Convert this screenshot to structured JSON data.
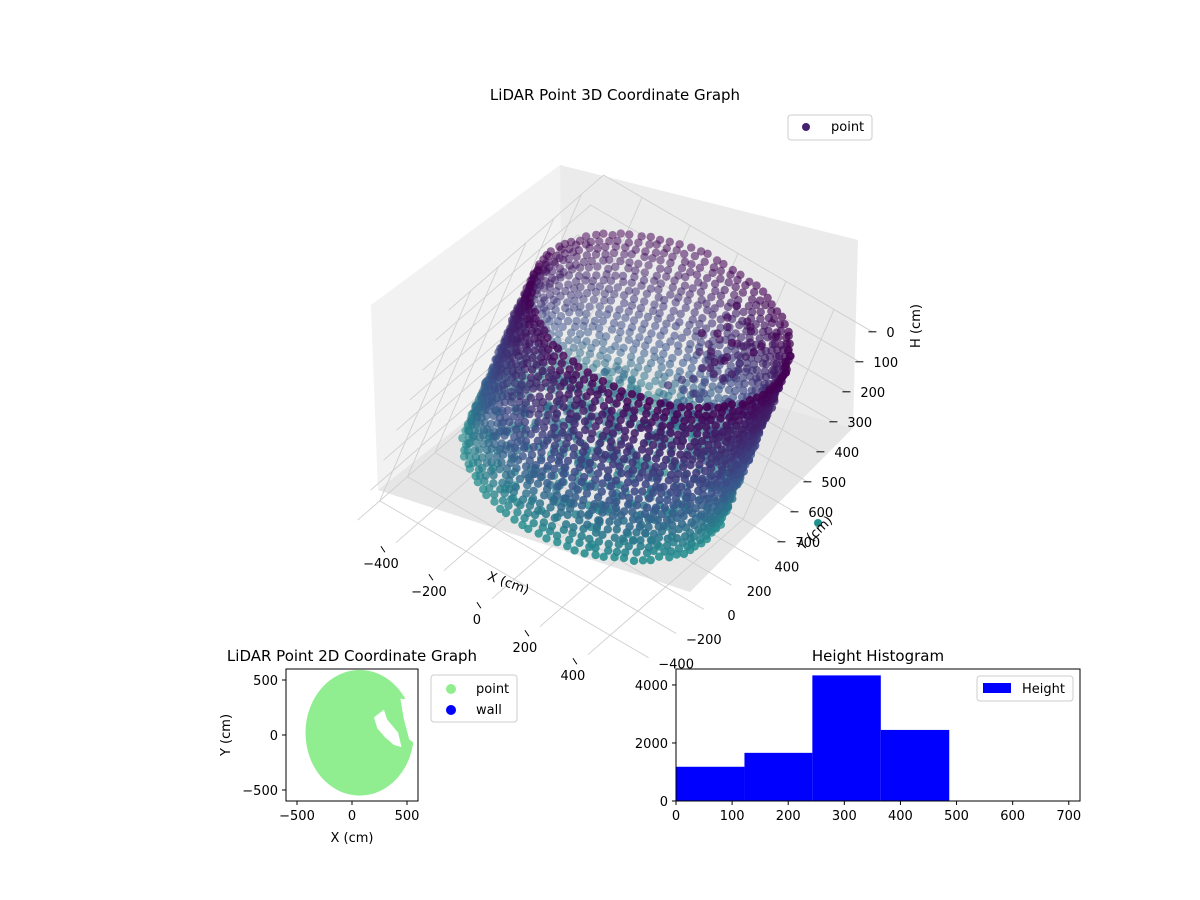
{
  "colors": {
    "point_3d_legend": "#46226e",
    "viridis_dark": "#440154",
    "viridis_mid": "#3b528b",
    "viridis_teal": "#21908d",
    "point_2d": "#90ee90",
    "wall_2d": "#0000ff",
    "hist_bar": "#0000ff",
    "pane_light": "#f2f2f2",
    "pane_mid": "#ebebeb",
    "pane_dark": "#e6e6e6",
    "grid": "#c8c8c8"
  },
  "chart_data": [
    {
      "type": "scatter",
      "subtype": "3d",
      "title": "LiDAR Point 3D Coordinate Graph",
      "xlabel": "X (cm)",
      "ylabel": "Y (cm)",
      "zlabel": "H (cm)",
      "x_ticks": [
        "−400",
        "−200",
        "0",
        "200",
        "400"
      ],
      "y_ticks": [
        "−400",
        "−200",
        "0",
        "200",
        "400"
      ],
      "z_ticks": [
        "0",
        "100",
        "200",
        "300",
        "400",
        "500",
        "600",
        "700"
      ],
      "xlim": [
        -560,
        560
      ],
      "ylim": [
        -560,
        560
      ],
      "zlim": [
        700,
        0
      ],
      "z_inverted": true,
      "colormap": "viridis",
      "legend": {
        "entries": [
          "point"
        ],
        "position": "top-right"
      },
      "description_shape": "cylindrical wall of points, radius ~480 cm, heights 0-500 cm, with interior clutter near the upper-right"
    },
    {
      "type": "scatter",
      "title": "LiDAR Point 2D Coordinate Graph",
      "xlabel": "X (cm)",
      "ylabel": "Y (cm)",
      "x_ticks": [
        "−500",
        "0",
        "500"
      ],
      "y_ticks": [
        "−500",
        "0",
        "500"
      ],
      "xlim": [
        -600,
        600
      ],
      "ylim": [
        -600,
        600
      ],
      "series": [
        {
          "name": "point",
          "color": "#90ee90"
        },
        {
          "name": "wall",
          "color": "#0000ff"
        }
      ],
      "legend": {
        "position": "outside-right"
      }
    },
    {
      "type": "bar",
      "subtype": "histogram",
      "title": "Height Histogram",
      "x_ticks": [
        "0",
        "100",
        "200",
        "300",
        "400",
        "500",
        "600",
        "700"
      ],
      "y_ticks": [
        "0",
        "2000",
        "4000"
      ],
      "xlim": [
        0,
        720
      ],
      "ylim": [
        0,
        4550
      ],
      "bins": [
        {
          "start": 0,
          "end": 122,
          "count": 1180
        },
        {
          "start": 122,
          "end": 243,
          "count": 1660
        },
        {
          "start": 243,
          "end": 365,
          "count": 4330
        },
        {
          "start": 365,
          "end": 487,
          "count": 2450
        },
        {
          "start": 487,
          "end": 608,
          "count": 0
        },
        {
          "start": 608,
          "end": 730,
          "count": 0
        }
      ],
      "series": [
        {
          "name": "Height",
          "color": "#0000ff"
        }
      ],
      "legend": {
        "position": "top-right"
      }
    }
  ]
}
